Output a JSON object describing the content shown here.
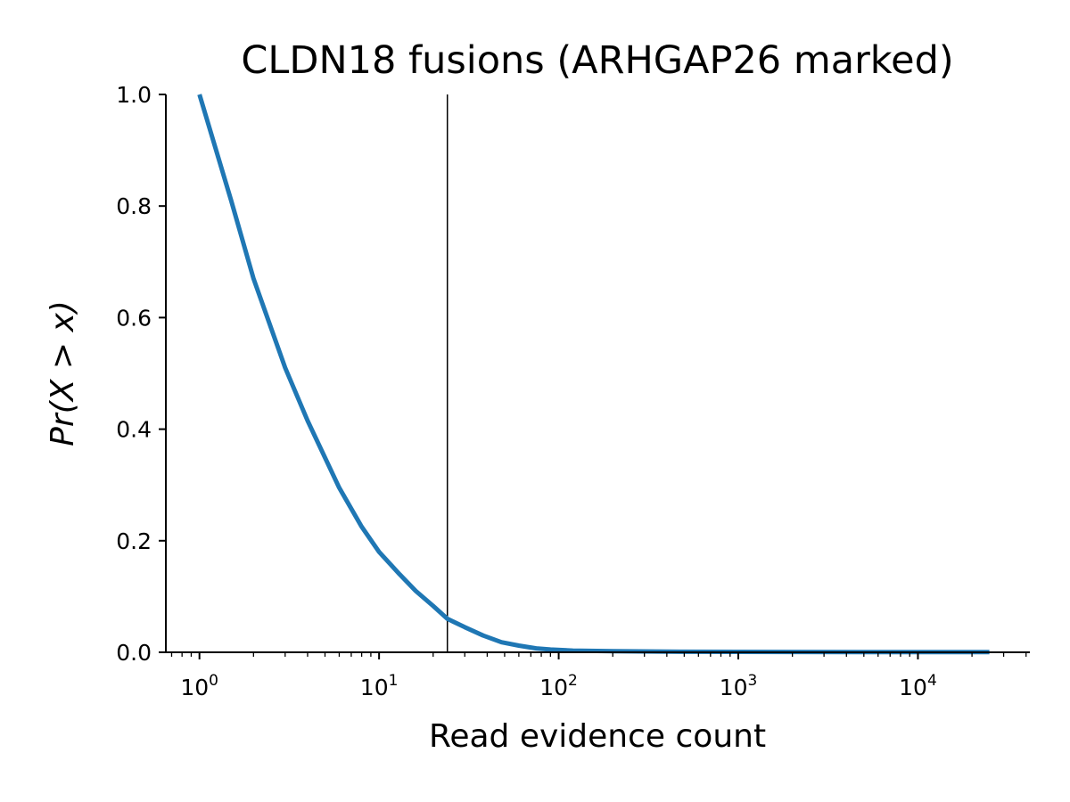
{
  "chart_data": {
    "type": "line",
    "title": "CLDN18 fusions (ARHGAP26 marked)",
    "xlabel": "Read evidence count",
    "ylabel": "Pr(X > x)",
    "xscale": "log",
    "xlim": [
      0.65,
      42000
    ],
    "ylim": [
      0,
      1
    ],
    "grid": false,
    "x_ticks": [
      {
        "value": 1,
        "label": "10",
        "exp": "0"
      },
      {
        "value": 10,
        "label": "10",
        "exp": "1"
      },
      {
        "value": 100,
        "label": "10",
        "exp": "2"
      },
      {
        "value": 1000,
        "label": "10",
        "exp": "3"
      },
      {
        "value": 10000,
        "label": "10",
        "exp": "4"
      }
    ],
    "y_ticks": [
      {
        "value": 0.0,
        "label": "0.0"
      },
      {
        "value": 0.2,
        "label": "0.2"
      },
      {
        "value": 0.4,
        "label": "0.4"
      },
      {
        "value": 0.6,
        "label": "0.6"
      },
      {
        "value": 0.8,
        "label": "0.8"
      },
      {
        "value": 1.0,
        "label": "1.0"
      }
    ],
    "series": [
      {
        "color": "#1f77b4",
        "x": [
          1,
          1.5,
          2,
          3,
          4,
          6,
          8,
          10,
          13,
          16,
          20,
          24,
          30,
          38,
          48,
          60,
          75,
          90,
          120,
          200,
          500,
          1000,
          5000,
          25000
        ],
        "y": [
          1.0,
          0.81,
          0.67,
          0.51,
          0.415,
          0.295,
          0.225,
          0.18,
          0.14,
          0.11,
          0.083,
          0.06,
          0.045,
          0.03,
          0.018,
          0.012,
          0.007,
          0.005,
          0.003,
          0.002,
          0.001,
          0.0008,
          0.0005,
          0.0003
        ]
      }
    ],
    "vlines": [
      {
        "x": 24,
        "color": "#000000"
      }
    ]
  }
}
